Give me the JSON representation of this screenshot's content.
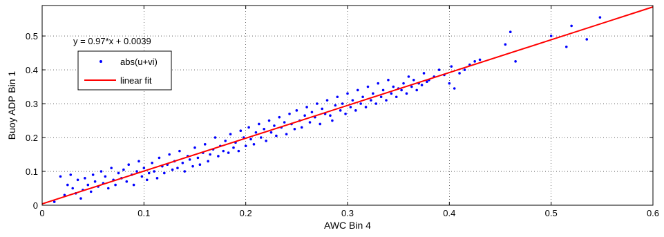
{
  "chart_data": {
    "type": "scatter",
    "xlabel": "AWC Bin 4",
    "ylabel": "Buoy ADP Bin 1",
    "xlim": [
      0,
      0.6
    ],
    "ylim": [
      0,
      0.59
    ],
    "xticks": [
      0,
      0.1,
      0.2,
      0.3,
      0.4,
      0.5,
      0.6
    ],
    "xtick_labels": [
      "0",
      "0.1",
      "0.2",
      "0.3",
      "0.4",
      "0.5",
      "0.6"
    ],
    "yticks": [
      0,
      0.1,
      0.2,
      0.3,
      0.4,
      0.5
    ],
    "ytick_labels": [
      "0",
      "0.1",
      "0.2",
      "0.3",
      "0.4",
      "0.5"
    ],
    "grid": true,
    "annotation": "y = 0.97*x + 0.0039",
    "legend": {
      "placement": "top-left",
      "entries": [
        "abs(u+vi)",
        "linear fit"
      ]
    },
    "series": [
      {
        "name": "abs(u+vi)",
        "type": "scatter",
        "color": "#0000ff",
        "x": [
          0.012,
          0.018,
          0.022,
          0.025,
          0.028,
          0.03,
          0.033,
          0.035,
          0.038,
          0.04,
          0.042,
          0.045,
          0.048,
          0.05,
          0.052,
          0.055,
          0.058,
          0.06,
          0.062,
          0.065,
          0.068,
          0.07,
          0.072,
          0.075,
          0.078,
          0.08,
          0.083,
          0.085,
          0.088,
          0.09,
          0.093,
          0.095,
          0.098,
          0.1,
          0.103,
          0.105,
          0.108,
          0.11,
          0.113,
          0.115,
          0.118,
          0.12,
          0.123,
          0.125,
          0.128,
          0.13,
          0.133,
          0.135,
          0.138,
          0.14,
          0.143,
          0.145,
          0.148,
          0.15,
          0.153,
          0.155,
          0.158,
          0.16,
          0.163,
          0.165,
          0.168,
          0.17,
          0.173,
          0.175,
          0.178,
          0.18,
          0.183,
          0.185,
          0.188,
          0.19,
          0.193,
          0.195,
          0.198,
          0.2,
          0.203,
          0.205,
          0.208,
          0.21,
          0.213,
          0.215,
          0.218,
          0.22,
          0.223,
          0.225,
          0.228,
          0.23,
          0.233,
          0.235,
          0.238,
          0.24,
          0.243,
          0.245,
          0.248,
          0.25,
          0.253,
          0.255,
          0.258,
          0.26,
          0.263,
          0.265,
          0.268,
          0.27,
          0.273,
          0.275,
          0.278,
          0.28,
          0.283,
          0.285,
          0.288,
          0.29,
          0.293,
          0.295,
          0.298,
          0.3,
          0.303,
          0.305,
          0.308,
          0.31,
          0.313,
          0.315,
          0.318,
          0.32,
          0.323,
          0.325,
          0.328,
          0.33,
          0.333,
          0.335,
          0.338,
          0.34,
          0.343,
          0.345,
          0.348,
          0.35,
          0.353,
          0.355,
          0.358,
          0.36,
          0.363,
          0.365,
          0.368,
          0.37,
          0.373,
          0.375,
          0.378,
          0.38,
          0.385,
          0.39,
          0.395,
          0.4,
          0.402,
          0.405,
          0.41,
          0.415,
          0.42,
          0.425,
          0.43,
          0.455,
          0.46,
          0.465,
          0.5,
          0.515,
          0.52,
          0.535,
          0.548
        ],
        "y": [
          0.01,
          0.085,
          0.03,
          0.06,
          0.09,
          0.05,
          0.035,
          0.075,
          0.02,
          0.045,
          0.08,
          0.06,
          0.04,
          0.09,
          0.07,
          0.055,
          0.1,
          0.065,
          0.085,
          0.05,
          0.11,
          0.075,
          0.06,
          0.095,
          0.08,
          0.105,
          0.07,
          0.12,
          0.09,
          0.06,
          0.1,
          0.13,
          0.085,
          0.11,
          0.075,
          0.095,
          0.125,
          0.1,
          0.08,
          0.14,
          0.115,
          0.095,
          0.12,
          0.15,
          0.105,
          0.13,
          0.11,
          0.16,
          0.125,
          0.1,
          0.145,
          0.135,
          0.115,
          0.17,
          0.14,
          0.12,
          0.155,
          0.18,
          0.13,
          0.15,
          0.165,
          0.2,
          0.145,
          0.175,
          0.16,
          0.19,
          0.155,
          0.21,
          0.17,
          0.185,
          0.16,
          0.22,
          0.2,
          0.175,
          0.23,
          0.195,
          0.18,
          0.215,
          0.24,
          0.2,
          0.225,
          0.19,
          0.25,
          0.215,
          0.235,
          0.205,
          0.26,
          0.23,
          0.245,
          0.21,
          0.27,
          0.24,
          0.225,
          0.28,
          0.25,
          0.23,
          0.265,
          0.29,
          0.245,
          0.275,
          0.26,
          0.3,
          0.24,
          0.285,
          0.27,
          0.31,
          0.265,
          0.25,
          0.295,
          0.32,
          0.28,
          0.3,
          0.27,
          0.33,
          0.29,
          0.31,
          0.28,
          0.34,
          0.3,
          0.32,
          0.29,
          0.35,
          0.31,
          0.33,
          0.3,
          0.36,
          0.32,
          0.34,
          0.31,
          0.37,
          0.33,
          0.35,
          0.32,
          0.345,
          0.34,
          0.36,
          0.33,
          0.38,
          0.35,
          0.37,
          0.34,
          0.36,
          0.355,
          0.39,
          0.365,
          0.37,
          0.38,
          0.4,
          0.385,
          0.36,
          0.41,
          0.345,
          0.39,
          0.4,
          0.415,
          0.425,
          0.43,
          0.475,
          0.512,
          0.425,
          0.5,
          0.468,
          0.53,
          0.49,
          0.555
        ]
      },
      {
        "name": "linear fit",
        "type": "line",
        "color": "#ff0000",
        "slope": 0.97,
        "intercept": 0.0039,
        "x": [
          0,
          0.6
        ],
        "y": [
          0.0039,
          0.5859
        ]
      }
    ]
  }
}
